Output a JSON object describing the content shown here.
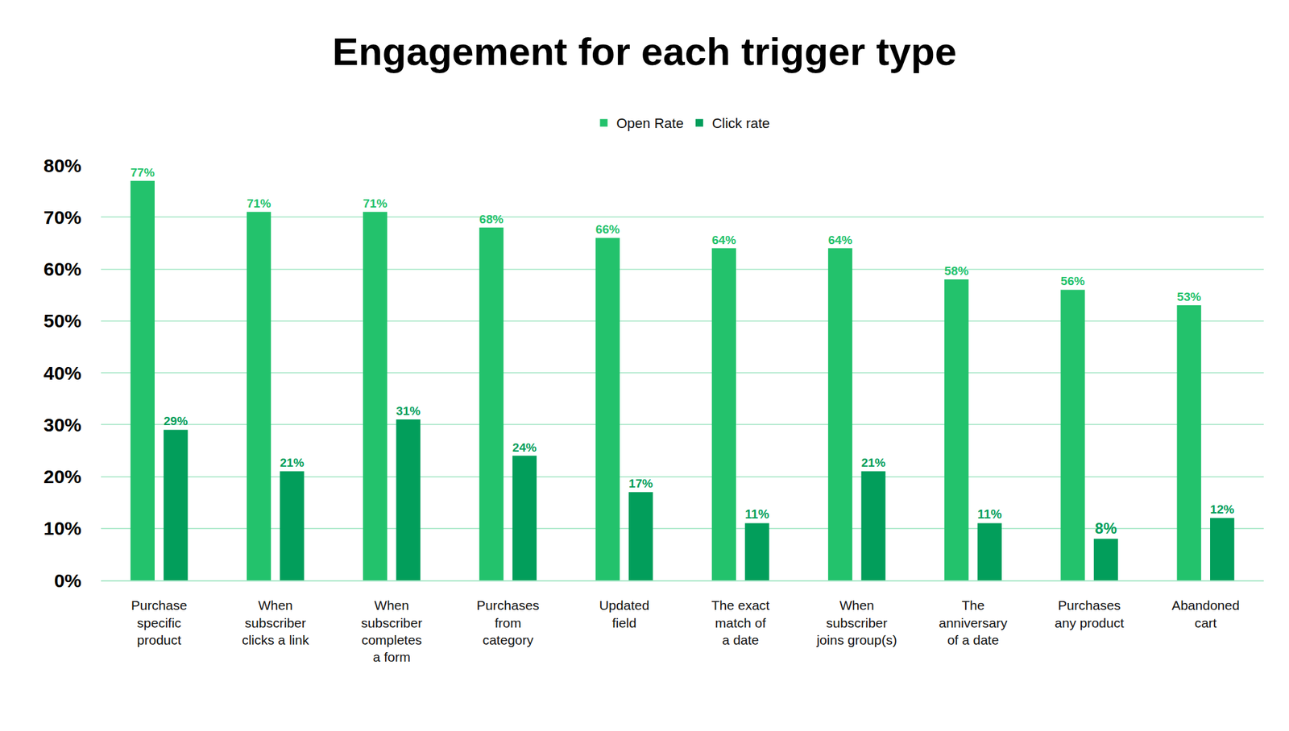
{
  "chart_data": {
    "type": "bar",
    "title": "Engagement for each trigger type",
    "categories": [
      "Purchase\nspecific\nproduct",
      "When\nsubscriber\nclicks a link",
      "When\nsubscriber\ncompletes\na form",
      "Purchases\nfrom\ncategory",
      "Updated\nfield",
      "The exact\nmatch of\na date",
      "When\nsubscriber\njoins group(s)",
      "The\nanniversary\nof a date",
      "Purchases\nany product",
      "Abandoned\ncart"
    ],
    "series": [
      {
        "name": "Open Rate",
        "color": "#23c26c",
        "values": [
          77,
          71,
          71,
          68,
          66,
          64,
          64,
          58,
          56,
          53
        ],
        "value_labels": [
          "77%",
          "71%",
          "71%",
          "68%",
          "66%",
          "64%",
          "64%",
          "58%",
          "56%",
          "53%"
        ]
      },
      {
        "name": "Click rate",
        "color": "#029e5b",
        "values": [
          29,
          21,
          31,
          24,
          17,
          11,
          21,
          11,
          8,
          12
        ],
        "value_labels": [
          "29%",
          "21%",
          "31%",
          "24%",
          "17%",
          "11%",
          "21%",
          "11%",
          "8%",
          "12%"
        ]
      }
    ],
    "ylim": [
      0,
      80
    ],
    "yticks": [
      {
        "value": 0,
        "label": "0%"
      },
      {
        "value": 10,
        "label": "10%"
      },
      {
        "value": 20,
        "label": "20%"
      },
      {
        "value": 30,
        "label": "30%"
      },
      {
        "value": 40,
        "label": "40%"
      },
      {
        "value": 50,
        "label": "50%"
      },
      {
        "value": 60,
        "label": "60%"
      },
      {
        "value": 70,
        "label": "70%"
      },
      {
        "value": 80,
        "label": "80%"
      }
    ],
    "grid": true,
    "legend": "top",
    "data_labels": true
  }
}
